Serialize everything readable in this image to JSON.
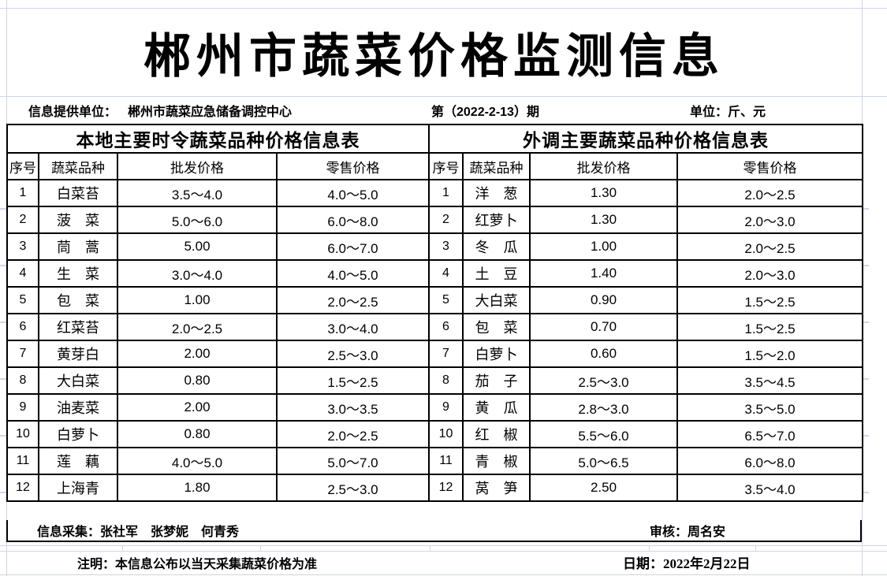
{
  "title": "郴州市蔬菜价格监测信息",
  "info_bar": {
    "provider_label": "信息提供单位：",
    "provider_value": "郴州市蔬菜应急储备调控中心",
    "issue": "第（2022-2-13）期",
    "unit": "单位：斤、元"
  },
  "columns": [
    "序号",
    "蔬菜品种",
    "批发价格",
    "零售价格"
  ],
  "local_table": {
    "title": "本地主要时令蔬菜品种价格信息表",
    "rows": [
      {
        "no": "1",
        "name": "白菜苔",
        "wholesale": "3.5～4.0",
        "retail": "4.0～5.0"
      },
      {
        "no": "2",
        "name": "菠　菜",
        "wholesale": "5.0～6.0",
        "retail": "6.0～8.0"
      },
      {
        "no": "3",
        "name": "茼　蒿",
        "wholesale": "5.00",
        "retail": "6.0～7.0"
      },
      {
        "no": "4",
        "name": "生　菜",
        "wholesale": "3.0～4.0",
        "retail": "4.0～5.0"
      },
      {
        "no": "5",
        "name": "包　菜",
        "wholesale": "1.00",
        "retail": "2.0～2.5"
      },
      {
        "no": "6",
        "name": "红菜苔",
        "wholesale": "2.0～2.5",
        "retail": "3.0～4.0"
      },
      {
        "no": "7",
        "name": "黄芽白",
        "wholesale": "2.00",
        "retail": "2.5～3.0"
      },
      {
        "no": "8",
        "name": "大白菜",
        "wholesale": "0.80",
        "retail": "1.5～2.5"
      },
      {
        "no": "9",
        "name": "油麦菜",
        "wholesale": "2.00",
        "retail": "3.0～3.5"
      },
      {
        "no": "10",
        "name": "白萝卜",
        "wholesale": "0.80",
        "retail": "2.0～2.5"
      },
      {
        "no": "11",
        "name": "莲　藕",
        "wholesale": "4.0～5.0",
        "retail": "5.0～7.0"
      },
      {
        "no": "12",
        "name": "上海青",
        "wholesale": "1.80",
        "retail": "2.5～3.0"
      }
    ]
  },
  "outside_table": {
    "title": "外调主要蔬菜品种价格信息表",
    "rows": [
      {
        "no": "1",
        "name": "洋　葱",
        "wholesale": "1.30",
        "retail": "2.0～2.5"
      },
      {
        "no": "2",
        "name": "红萝卜",
        "wholesale": "1.30",
        "retail": "2.0～3.0"
      },
      {
        "no": "3",
        "name": "冬　瓜",
        "wholesale": "1.00",
        "retail": "2.0～2.5"
      },
      {
        "no": "4",
        "name": "土　豆",
        "wholesale": "1.40",
        "retail": "2.0～3.0"
      },
      {
        "no": "5",
        "name": "大白菜",
        "wholesale": "0.90",
        "retail": "1.5～2.5"
      },
      {
        "no": "6",
        "name": "包　菜",
        "wholesale": "0.70",
        "retail": "1.5～2.5"
      },
      {
        "no": "7",
        "name": "白萝卜",
        "wholesale": "0.60",
        "retail": "1.5～2.0"
      },
      {
        "no": "8",
        "name": "茄　子",
        "wholesale": "2.5～3.0",
        "retail": "3.5～4.5"
      },
      {
        "no": "9",
        "name": "黄　瓜",
        "wholesale": "2.8～3.0",
        "retail": "3.5～5.0"
      },
      {
        "no": "10",
        "name": "红　椒",
        "wholesale": "5.5～6.0",
        "retail": "6.5～7.0"
      },
      {
        "no": "11",
        "name": "青　椒",
        "wholesale": "5.0～6.5",
        "retail": "6.0～8.0"
      },
      {
        "no": "12",
        "name": "莴　笋",
        "wholesale": "2.50",
        "retail": "3.5～4.0"
      }
    ]
  },
  "footer": {
    "collectors": "信息采集：张社军　张梦妮　何青秀",
    "reviewer": "审核：周名安",
    "note": "注明：本信息公布以当天采集蔬菜价格为准",
    "date": "日期：2022年2月22日"
  },
  "colors": {
    "background": "#ffffff",
    "table_border": "#000000",
    "gridline": "#cfd6e4",
    "text": "#000000"
  }
}
